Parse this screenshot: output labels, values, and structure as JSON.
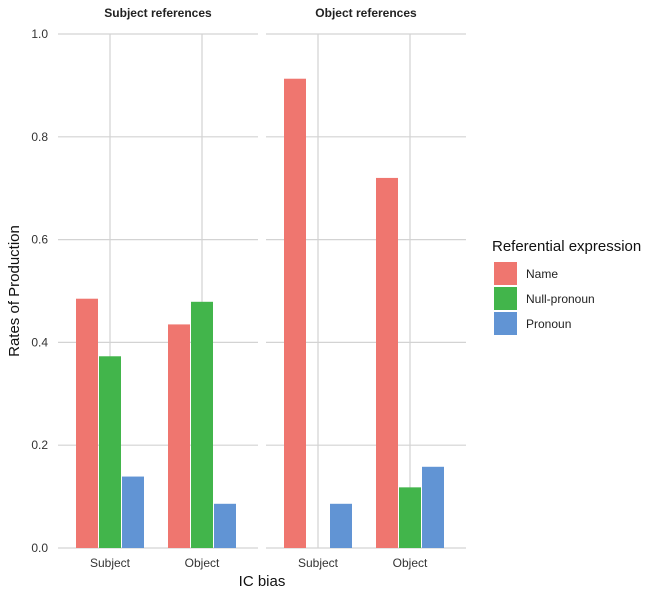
{
  "chart_data": {
    "type": "bar",
    "facets": [
      {
        "title": "Subject references",
        "categories": [
          "Subject",
          "Object"
        ],
        "series": [
          {
            "name": "Name",
            "values": [
              0.485,
              0.435
            ]
          },
          {
            "name": "Null-pronoun",
            "values": [
              0.373,
              0.479
            ]
          },
          {
            "name": "Pronoun",
            "values": [
              0.139,
              0.086
            ]
          }
        ]
      },
      {
        "title": "Object references",
        "categories": [
          "Subject",
          "Object"
        ],
        "series": [
          {
            "name": "Name",
            "values": [
              0.913,
              0.72
            ]
          },
          {
            "name": "Null-pronoun",
            "values": [
              0.0,
              0.118
            ]
          },
          {
            "name": "Pronoun",
            "values": [
              0.086,
              0.158
            ]
          }
        ]
      }
    ],
    "xlabel": "IC bias",
    "ylabel": "Rates of Production",
    "ylim": [
      0,
      1.0
    ],
    "yticks": [
      "0.0",
      "0.2",
      "0.4",
      "0.6",
      "0.8",
      "1.0"
    ],
    "legend": {
      "title": "Referential expression",
      "placement": "right",
      "entries": [
        "Name",
        "Null-pronoun",
        "Pronoun"
      ]
    },
    "colors": {
      "Name": "#EF766F",
      "Null-pronoun": "#42B54B",
      "Pronoun": "#6194D4"
    },
    "grid": true
  }
}
